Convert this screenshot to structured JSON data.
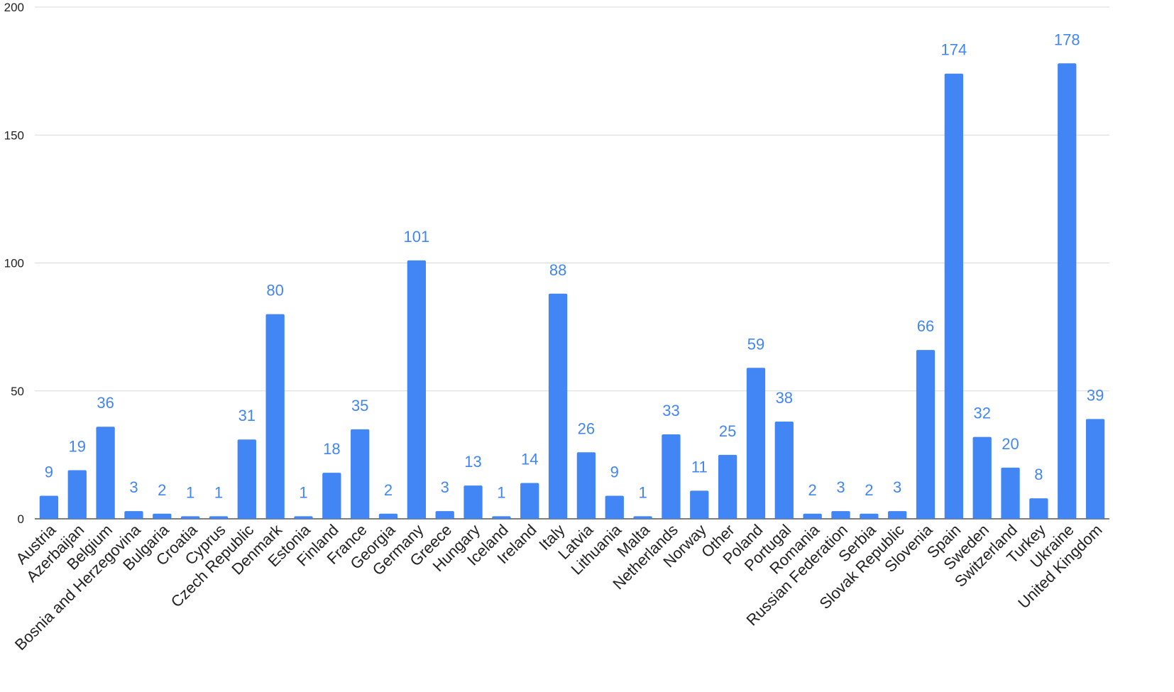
{
  "chart_data": {
    "type": "bar",
    "title": "",
    "xlabel": "",
    "ylabel": "",
    "ylim": [
      0,
      200
    ],
    "yticks": [
      0,
      50,
      100,
      150,
      200
    ],
    "grid": true,
    "legend": "none",
    "bar_color": "#4285F4",
    "label_color": "#4285F4",
    "categories": [
      "Austria",
      "Azerbaijan",
      "Belgium",
      "Bosnia and Herzegovina",
      "Bulgaria",
      "Croatia",
      "Cyprus",
      "Czech Republic",
      "Denmark",
      "Estonia",
      "Finland",
      "France",
      "Georgia",
      "Germany",
      "Greece",
      "Hungary",
      "Iceland",
      "Ireland",
      "Italy",
      "Latvia",
      "Lithuania",
      "Malta",
      "Netherlands",
      "Norway",
      "Other",
      "Poland",
      "Portugal",
      "Romania",
      "Russian Federation",
      "Serbia",
      "Slovak Republic",
      "Slovenia",
      "Spain",
      "Sweden",
      "Switzerland",
      "Turkey",
      "Ukraine",
      "United Kingdom"
    ],
    "values": [
      9,
      19,
      36,
      3,
      2,
      1,
      1,
      31,
      80,
      1,
      18,
      35,
      2,
      101,
      3,
      13,
      1,
      14,
      88,
      26,
      9,
      1,
      33,
      11,
      25,
      59,
      38,
      2,
      3,
      2,
      3,
      66,
      174,
      32,
      20,
      8,
      178,
      39
    ]
  }
}
